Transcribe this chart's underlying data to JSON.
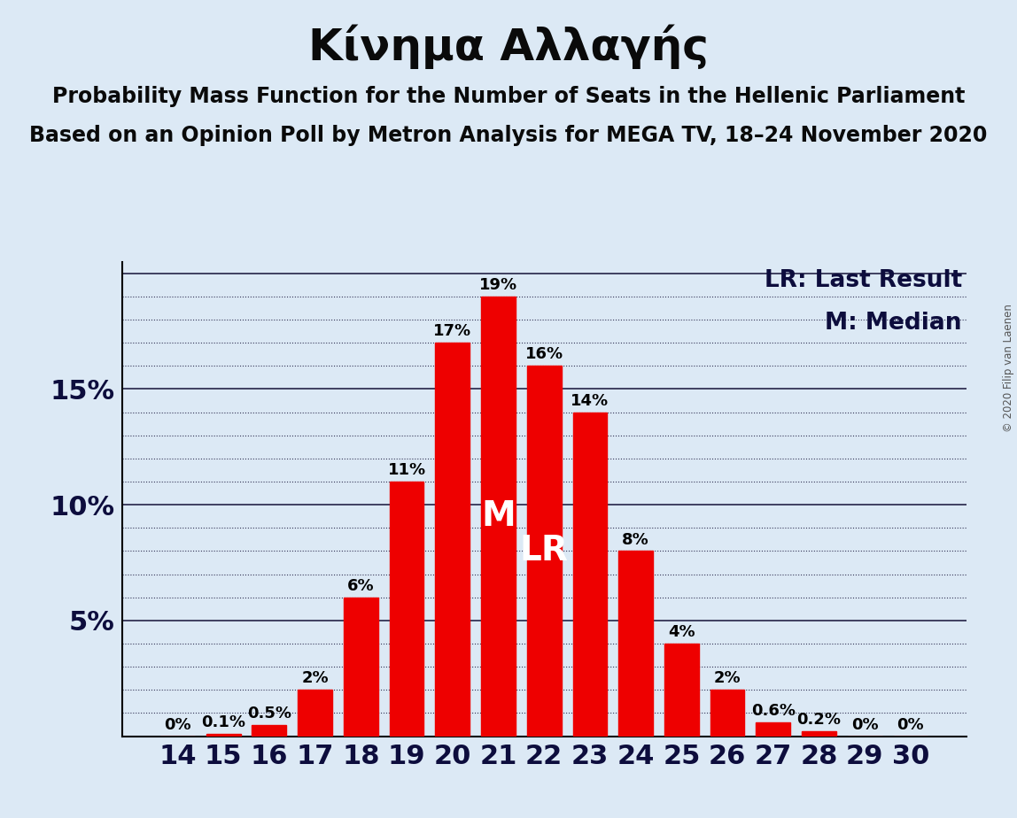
{
  "title": "Κίνημα Αλλαγής",
  "subtitle1": "Probability Mass Function for the Number of Seats in the Hellenic Parliament",
  "subtitle2": "Based on an Opinion Poll by Metron Analysis for MEGA TV, 18–24 November 2020",
  "copyright": "© 2020 Filip van Laenen",
  "categories": [
    14,
    15,
    16,
    17,
    18,
    19,
    20,
    21,
    22,
    23,
    24,
    25,
    26,
    27,
    28,
    29,
    30
  ],
  "values": [
    0.0,
    0.1,
    0.5,
    2.0,
    6.0,
    11.0,
    17.0,
    19.0,
    16.0,
    14.0,
    8.0,
    4.0,
    2.0,
    0.6,
    0.2,
    0.0,
    0.0
  ],
  "labels": [
    "0%",
    "0.1%",
    "0.5%",
    "2%",
    "6%",
    "11%",
    "17%",
    "19%",
    "16%",
    "14%",
    "8%",
    "4%",
    "2%",
    "0.6%",
    "0.2%",
    "0%",
    "0%"
  ],
  "bar_color": "#ee0000",
  "background_color": "#dce9f5",
  "median_bar": 21,
  "lr_bar": 22,
  "ylim": [
    0,
    20.5
  ],
  "legend_lr": "LR: Last Result",
  "legend_m": "M: Median",
  "title_fontsize": 36,
  "subtitle_fontsize": 17,
  "bar_label_fontsize": 13,
  "axis_label_fontsize": 22,
  "inner_label_fontsize": 28,
  "legend_fontsize": 19,
  "tick_label_color": "#0d0d3d"
}
